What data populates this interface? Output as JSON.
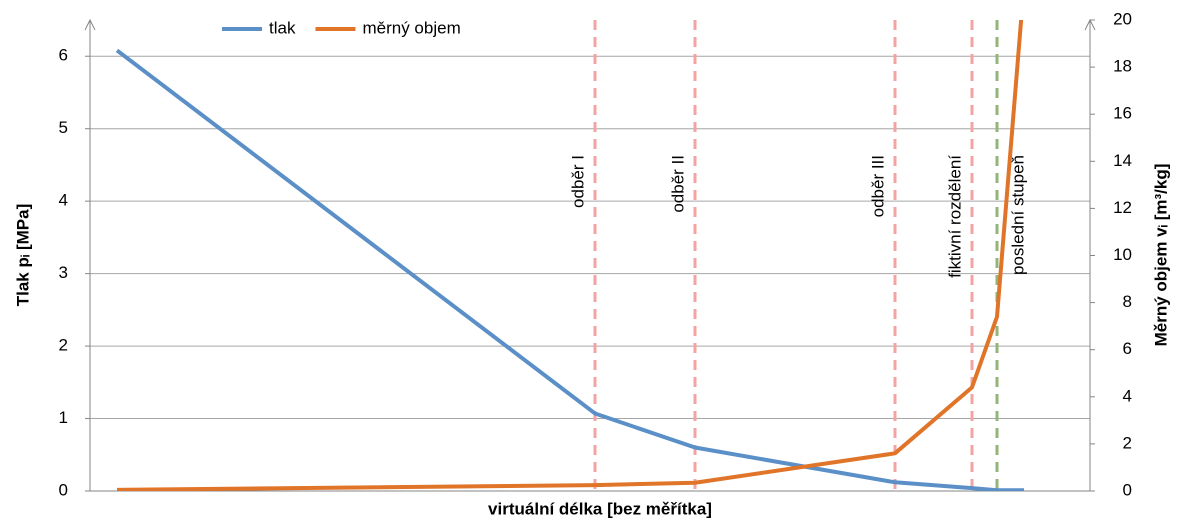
{
  "chart_data": {
    "type": "line",
    "xlabel": "virtuální délka [bez měřítka]",
    "ylabel": "Tlak pᵢ [MPa]",
    "y2label": "Měrný objem vᵢ [m³/kg]",
    "x": [
      2.7,
      50.5,
      60.5,
      80.5,
      88.2,
      90.7,
      93.4
    ],
    "xlim": [
      0,
      100
    ],
    "ylim": [
      0,
      6.5
    ],
    "yticks": [
      0,
      1,
      2,
      3,
      4,
      5,
      6
    ],
    "y2lim": [
      0,
      20
    ],
    "y2ticks": [
      0,
      2,
      4,
      6,
      8,
      10,
      12,
      14,
      16,
      18,
      20
    ],
    "grid": true,
    "legend": "top",
    "series": [
      {
        "name": "tlak",
        "color": "#5b8fc7",
        "values": [
          6.08,
          1.07,
          0.6,
          0.12,
          0.04,
          0.01,
          0.01
        ]
      },
      {
        "name": "měrný objem",
        "color": "#e07428",
        "axis": "y2",
        "values": [
          0.05,
          0.25,
          0.35,
          1.6,
          4.4,
          7.4,
          21.5
        ]
      }
    ],
    "annotations": [
      {
        "text": "odběr I",
        "x": 50.5,
        "color": "#f4a3a3"
      },
      {
        "text": "odběr II",
        "x": 60.5,
        "color": "#f4a3a3"
      },
      {
        "text": "odběr III",
        "x": 80.5,
        "color": "#f4a3a3"
      },
      {
        "text": "fiktivní rozdělení",
        "x": 88.2,
        "color": "#f4a3a3"
      },
      {
        "text": "poslední stupeň",
        "x": 90.7,
        "color": "#93b57a"
      }
    ]
  }
}
